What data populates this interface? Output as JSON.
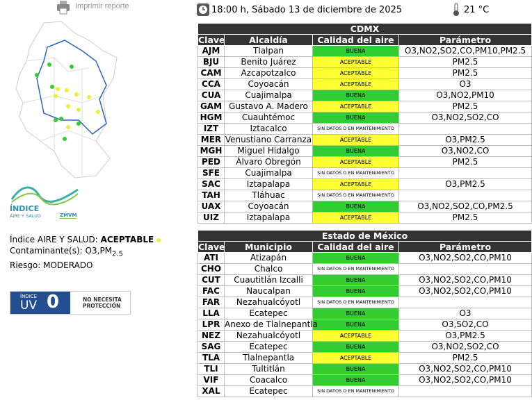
{
  "header": {
    "print_label": "Imprimir reporte",
    "datetime": "18:00 h, Sábado 13 de diciembre de 2025",
    "temperature": "21 °C"
  },
  "logo": {
    "title": "ÍNDICE",
    "subtitle": "AIRE Y SALUD",
    "region": "ZMVM"
  },
  "index": {
    "label": "Índice AIRE Y SALUD:",
    "value": "ACEPTABLE",
    "contaminant_label": "Contaminante(s):",
    "contaminant": "O3,PM",
    "contaminant_sub": "2.5",
    "risk": "Riesgo: MODERADO"
  },
  "uv": {
    "title": "ÍNDICE",
    "label": "UV",
    "value": "0",
    "note": "NO NECESITA PROTECCIÓN"
  },
  "cdmx": {
    "title": "CDMX",
    "headers": [
      "Clave",
      "Alcaldía",
      "Calidad del aire",
      "Parámetro"
    ],
    "rows": [
      {
        "code": "AJM",
        "name": "Tlalpan",
        "quality": "BUENA",
        "color": "#33cc33",
        "params": "O3,NO2,SO2,CO,PM10,PM2.5"
      },
      {
        "code": "BJU",
        "name": "Benito Juárez",
        "quality": "ACEPTABLE",
        "color": "#ffff33",
        "params": "PM2.5"
      },
      {
        "code": "CAM",
        "name": "Azcapotzalco",
        "quality": "ACEPTABLE",
        "color": "#ffff33",
        "params": "PM2.5"
      },
      {
        "code": "CCA",
        "name": "Coyoacán",
        "quality": "ACEPTABLE",
        "color": "#ffff33",
        "params": "O3"
      },
      {
        "code": "CUA",
        "name": "Cuajimalpa",
        "quality": "BUENA",
        "color": "#33cc33",
        "params": "O3,NO2,PM10"
      },
      {
        "code": "GAM",
        "name": "Gustavo A. Madero",
        "quality": "ACEPTABLE",
        "color": "#ffff33",
        "params": "PM2.5"
      },
      {
        "code": "HGM",
        "name": "Cuauhtémoc",
        "quality": "BUENA",
        "color": "#33cc33",
        "params": "O3,NO2,SO2,CO"
      },
      {
        "code": "IZT",
        "name": "Iztacalco",
        "quality": "SIN DATOS O EN MANTENIMIENTO",
        "color": "#ffffff",
        "params": null
      },
      {
        "code": "MER",
        "name": "Venustiano Carranza",
        "quality": "ACEPTABLE",
        "color": "#ffff33",
        "params": "O3,PM2.5"
      },
      {
        "code": "MGH",
        "name": "Miguel Hidalgo",
        "quality": "BUENA",
        "color": "#33cc33",
        "params": "O3,NO2,CO"
      },
      {
        "code": "PED",
        "name": "Álvaro Obregón",
        "quality": "ACEPTABLE",
        "color": "#ffff33",
        "params": "PM2.5"
      },
      {
        "code": "SFE",
        "name": "Cuajimalpa",
        "quality": "SIN DATOS O EN MANTENIMIENTO",
        "color": "#ffffff",
        "params": null
      },
      {
        "code": "SAC",
        "name": "Iztapalapa",
        "quality": "ACEPTABLE",
        "color": "#ffff33",
        "params": "O3,PM2.5"
      },
      {
        "code": "TAH",
        "name": "Tláhuac",
        "quality": "SIN DATOS O EN MANTENIMIENTO",
        "color": "#ffffff",
        "params": null
      },
      {
        "code": "UAX",
        "name": "Coyoacán",
        "quality": "BUENA",
        "color": "#33cc33",
        "params": "O3,NO2,SO2,CO,PM2.5"
      },
      {
        "code": "UIZ",
        "name": "Iztapalapa",
        "quality": "ACEPTABLE",
        "color": "#ffff33",
        "params": "PM2.5"
      }
    ]
  },
  "edomex": {
    "title": "Estado de México",
    "headers": [
      "Clave",
      "Municipio",
      "Calidad del aire",
      "Parámetro"
    ],
    "rows": [
      {
        "code": "ATI",
        "name": "Atizapán",
        "quality": "BUENA",
        "color": "#33cc33",
        "params": "O3,NO2,SO2,CO,PM10"
      },
      {
        "code": "CHO",
        "name": "Chalco",
        "quality": "SIN DATOS O EN MANTENIMIENTO",
        "color": "#ffffff",
        "params": null
      },
      {
        "code": "CUT",
        "name": "Cuautitlán Izcalli",
        "quality": "BUENA",
        "color": "#33cc33",
        "params": "O3,NO2,SO2,CO,PM10"
      },
      {
        "code": "FAC",
        "name": "Naucalpan",
        "quality": "BUENA",
        "color": "#33cc33",
        "params": "O3,NO2,SO2,CO,PM10"
      },
      {
        "code": "FAR",
        "name": "Nezahualcóyotl",
        "quality": "SIN DATOS O EN MANTENIMIENTO",
        "color": "#ffffff",
        "params": null
      },
      {
        "code": "LLA",
        "name": "Ecatepec",
        "quality": "BUENA",
        "color": "#33cc33",
        "params": "O3"
      },
      {
        "code": "LPR",
        "name": "Anexo de Tlalnepantla",
        "quality": "BUENA",
        "color": "#33cc33",
        "params": "O3,SO2,CO"
      },
      {
        "code": "NEZ",
        "name": "Nezahualcóyotl",
        "quality": "ACEPTABLE",
        "color": "#ffff33",
        "params": "O3,PM2.5"
      },
      {
        "code": "SAG",
        "name": "Ecatepec",
        "quality": "BUENA",
        "color": "#33cc33",
        "params": "O3,NO2,SO2,CO"
      },
      {
        "code": "TLA",
        "name": "Tlalnepantla",
        "quality": "ACEPTABLE",
        "color": "#ffff33",
        "params": "PM2.5"
      },
      {
        "code": "TLI",
        "name": "Tultitlán",
        "quality": "BUENA",
        "color": "#33cc33",
        "params": "O3,NO2,SO2,CO,PM10"
      },
      {
        "code": "VIF",
        "name": "Coacalco",
        "quality": "BUENA",
        "color": "#33cc33",
        "params": "O3,NO2,SO2,CO,PM10"
      },
      {
        "code": "XAL",
        "name": "Ecatepec",
        "quality": "SIN DATOS O EN MANTENIMIENTO",
        "color": "#ffffff",
        "params": null
      }
    ]
  }
}
